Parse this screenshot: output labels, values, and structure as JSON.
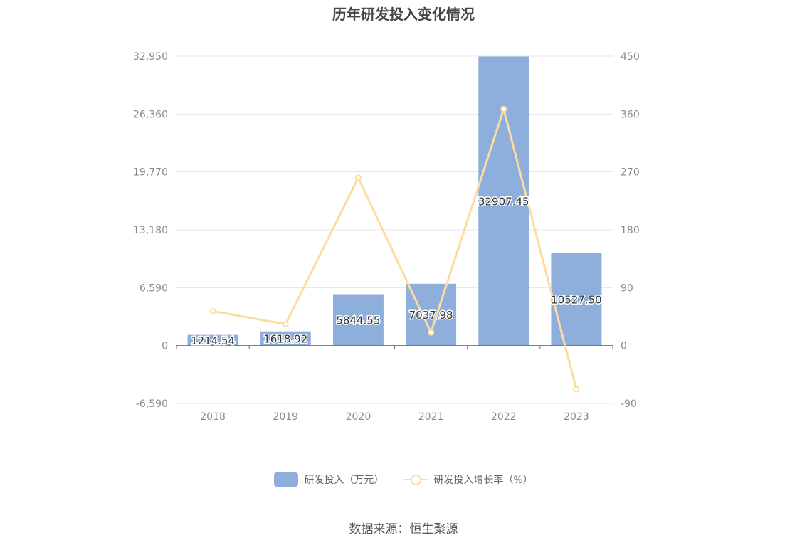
{
  "chart_data": {
    "type": "bar",
    "title": "历年研发投入变化情况",
    "categories": [
      "2018",
      "2019",
      "2020",
      "2021",
      "2022",
      "2023"
    ],
    "series": [
      {
        "name": "研发投入（万元）",
        "type": "bar",
        "axis": "left",
        "values": [
          1214.54,
          1618.92,
          5844.55,
          7037.98,
          32907.45,
          10527.5
        ],
        "labels": [
          "1214.54",
          "1618.92",
          "5844.55",
          "7037.98",
          "32907.45",
          "10527.50"
        ]
      },
      {
        "name": "研发投入增长率（%）",
        "type": "line",
        "axis": "right",
        "values": [
          53.5,
          33.3,
          261.0,
          20.4,
          367.6,
          -68.0
        ]
      }
    ],
    "y_left": {
      "ticks": [
        "32,950",
        "26,360",
        "19,770",
        "13,180",
        "6,590",
        "0",
        "-6,590"
      ],
      "range": [
        -6590,
        32950
      ]
    },
    "y_right": {
      "ticks": [
        "450",
        "360",
        "270",
        "180",
        "90",
        "0",
        "-90"
      ],
      "range": [
        -90,
        450
      ]
    },
    "colors": {
      "bar": "#8eaedb",
      "line": "#fcdca0",
      "grid": "#e0e6f1"
    },
    "legend_position": "bottom-center",
    "grid": true
  },
  "source": "数据来源：恒生聚源"
}
